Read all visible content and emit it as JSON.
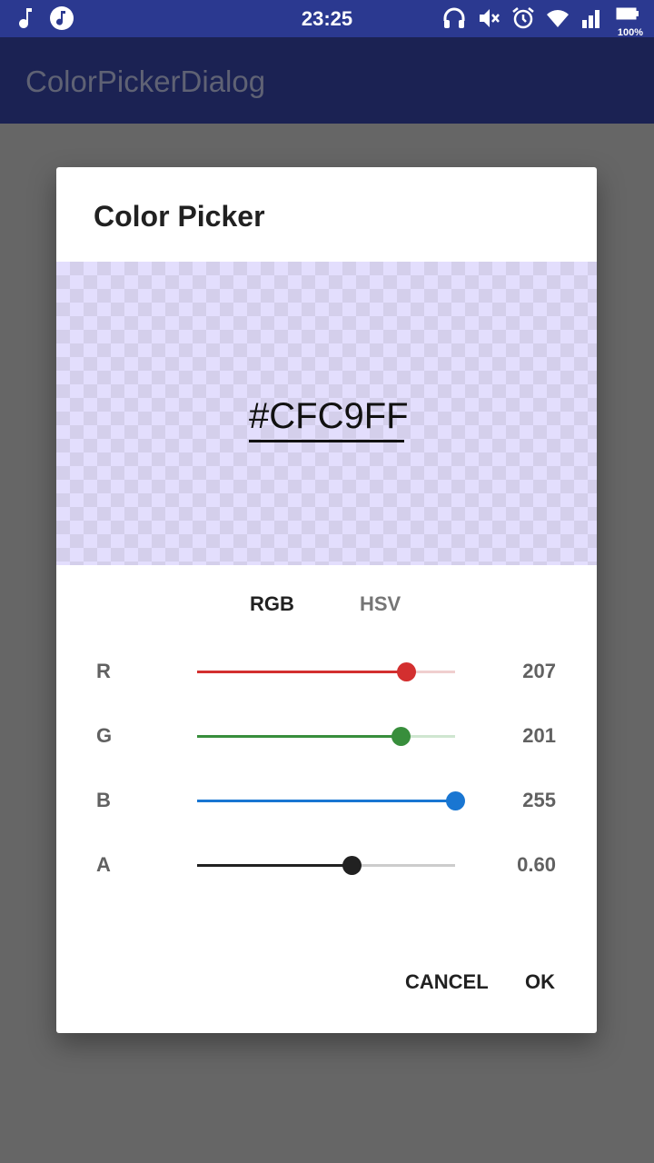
{
  "status_bar": {
    "time": "23:25",
    "battery_percent": "100%",
    "left_icons": [
      "music-note-icon",
      "music-player-icon"
    ],
    "right_icons": [
      "headset-icon",
      "mute-icon",
      "alarm-icon",
      "wifi-icon",
      "signal-icon",
      "battery-icon"
    ]
  },
  "app_bar": {
    "title": "ColorPickerDialog"
  },
  "dialog": {
    "title": "Color Picker",
    "hex_value": "#CFC9FF",
    "tabs": [
      {
        "label": "RGB",
        "selected": true
      },
      {
        "label": "HSV",
        "selected": false
      }
    ],
    "sliders": [
      {
        "label": "R",
        "value": "207",
        "fraction": 0.81,
        "color": "#d32f2f",
        "track_color": "#f0cfcf"
      },
      {
        "label": "G",
        "value": "201",
        "fraction": 0.79,
        "color": "#388e3c",
        "track_color": "#cfe6d0"
      },
      {
        "label": "B",
        "value": "255",
        "fraction": 1.0,
        "color": "#1976d2",
        "track_color": "#cde0f5"
      },
      {
        "label": "A",
        "value": "0.60",
        "fraction": 0.6,
        "color": "#212121",
        "track_color": "#cccccc"
      }
    ],
    "cancel_label": "CANCEL",
    "ok_label": "OK"
  },
  "colors": {
    "status_bar": "#2b3990",
    "app_bar_dimmed": "#1b2253",
    "scrim": "#666666",
    "selected_color": "#CFC9FF"
  }
}
